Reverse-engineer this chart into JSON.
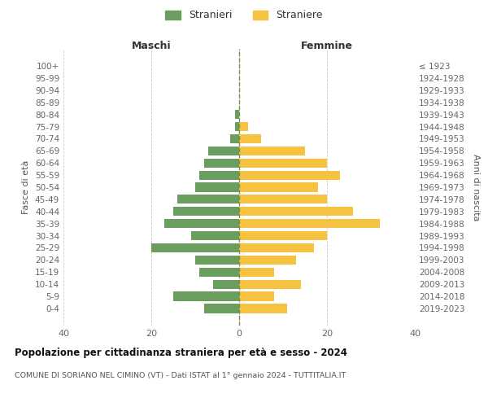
{
  "age_groups": [
    "100+",
    "95-99",
    "90-94",
    "85-89",
    "80-84",
    "75-79",
    "70-74",
    "65-69",
    "60-64",
    "55-59",
    "50-54",
    "45-49",
    "40-44",
    "35-39",
    "30-34",
    "25-29",
    "20-24",
    "15-19",
    "10-14",
    "5-9",
    "0-4"
  ],
  "birth_years": [
    "≤ 1923",
    "1924-1928",
    "1929-1933",
    "1934-1938",
    "1939-1943",
    "1944-1948",
    "1949-1953",
    "1954-1958",
    "1959-1963",
    "1964-1968",
    "1969-1973",
    "1974-1978",
    "1979-1983",
    "1984-1988",
    "1989-1993",
    "1994-1998",
    "1999-2003",
    "2004-2008",
    "2009-2013",
    "2014-2018",
    "2019-2023"
  ],
  "maschi": [
    0,
    0,
    0,
    0,
    1,
    1,
    2,
    7,
    8,
    9,
    10,
    14,
    15,
    17,
    11,
    20,
    10,
    9,
    6,
    15,
    8
  ],
  "femmine": [
    0,
    0,
    0,
    0,
    0,
    2,
    5,
    15,
    20,
    23,
    18,
    20,
    26,
    32,
    20,
    17,
    13,
    8,
    14,
    8,
    11
  ],
  "male_color": "#6a9e5e",
  "female_color": "#f5c242",
  "title_main": "Popolazione per cittadinanza straniera per età e sesso - 2024",
  "title_sub": "COMUNE DI SORIANO NEL CIMINO (VT) - Dati ISTAT al 1° gennaio 2024 - TUTTITALIA.IT",
  "xlabel_left": "Maschi",
  "xlabel_right": "Femmine",
  "ylabel_left": "Fasce di età",
  "ylabel_right": "Anni di nascita",
  "legend_male": "Stranieri",
  "legend_female": "Straniere",
  "xlim": 40,
  "background_color": "#ffffff",
  "grid_color": "#cccccc"
}
